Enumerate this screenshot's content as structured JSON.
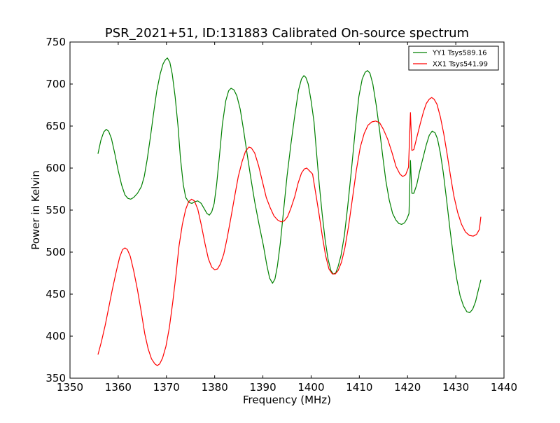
{
  "chart_data": {
    "type": "line",
    "title": "PSR_2021+51, ID:131883 Calibrated On-source spectrum",
    "xlabel": "Frequency (MHz)",
    "ylabel": "Power in Kelvin",
    "xlim": [
      1350,
      1440
    ],
    "ylim": [
      350,
      750
    ],
    "xticks": [
      "1350",
      "1360",
      "1370",
      "1380",
      "1390",
      "1400",
      "1410",
      "1420",
      "1430",
      "1440"
    ],
    "yticks": [
      "350",
      "400",
      "450",
      "500",
      "550",
      "600",
      "650",
      "700",
      "750"
    ],
    "grid": false,
    "legend_position": "top-right",
    "series": [
      {
        "name": "YY1 Tsys589.16",
        "color": "#008000",
        "points": [
          [
            1355.8,
            617
          ],
          [
            1356.4,
            633
          ],
          [
            1357.0,
            643
          ],
          [
            1357.5,
            646
          ],
          [
            1358.0,
            644
          ],
          [
            1358.6,
            635
          ],
          [
            1359.3,
            617
          ],
          [
            1360.0,
            597
          ],
          [
            1360.7,
            580
          ],
          [
            1361.4,
            568
          ],
          [
            1362.0,
            564
          ],
          [
            1362.6,
            563
          ],
          [
            1363.2,
            565
          ],
          [
            1364.0,
            570
          ],
          [
            1364.8,
            578
          ],
          [
            1365.4,
            590
          ],
          [
            1366.0,
            610
          ],
          [
            1366.7,
            638
          ],
          [
            1367.4,
            668
          ],
          [
            1368.0,
            692
          ],
          [
            1368.7,
            712
          ],
          [
            1369.3,
            724
          ],
          [
            1369.8,
            729
          ],
          [
            1370.2,
            731
          ],
          [
            1370.7,
            726
          ],
          [
            1371.2,
            712
          ],
          [
            1371.8,
            685
          ],
          [
            1372.4,
            650
          ],
          [
            1372.9,
            612
          ],
          [
            1373.5,
            580
          ],
          [
            1374.0,
            565
          ],
          [
            1374.7,
            559
          ],
          [
            1375.3,
            558
          ],
          [
            1375.9,
            560
          ],
          [
            1376.5,
            561
          ],
          [
            1377.2,
            558
          ],
          [
            1377.8,
            552
          ],
          [
            1378.4,
            546
          ],
          [
            1378.9,
            544
          ],
          [
            1379.4,
            548
          ],
          [
            1379.9,
            558
          ],
          [
            1380.4,
            580
          ],
          [
            1381.0,
            615
          ],
          [
            1381.6,
            652
          ],
          [
            1382.3,
            680
          ],
          [
            1382.9,
            692
          ],
          [
            1383.4,
            695
          ],
          [
            1384.0,
            693
          ],
          [
            1384.6,
            686
          ],
          [
            1385.3,
            670
          ],
          [
            1386.0,
            645
          ],
          [
            1386.7,
            618
          ],
          [
            1387.5,
            588
          ],
          [
            1388.3,
            560
          ],
          [
            1389.2,
            533
          ],
          [
            1390.1,
            508
          ],
          [
            1390.8,
            485
          ],
          [
            1391.4,
            469
          ],
          [
            1392.0,
            463
          ],
          [
            1392.5,
            468
          ],
          [
            1393.0,
            483
          ],
          [
            1393.6,
            510
          ],
          [
            1394.3,
            550
          ],
          [
            1395.0,
            590
          ],
          [
            1395.8,
            628
          ],
          [
            1396.6,
            662
          ],
          [
            1397.4,
            693
          ],
          [
            1398.0,
            706
          ],
          [
            1398.5,
            710
          ],
          [
            1398.9,
            708
          ],
          [
            1399.4,
            700
          ],
          [
            1400.0,
            680
          ],
          [
            1400.6,
            655
          ],
          [
            1401.1,
            620
          ],
          [
            1401.7,
            580
          ],
          [
            1402.3,
            545
          ],
          [
            1402.9,
            515
          ],
          [
            1403.5,
            492
          ],
          [
            1404.1,
            478
          ],
          [
            1404.6,
            474
          ],
          [
            1405.1,
            475
          ],
          [
            1405.6,
            483
          ],
          [
            1406.2,
            496
          ],
          [
            1406.9,
            520
          ],
          [
            1407.6,
            555
          ],
          [
            1408.4,
            600
          ],
          [
            1409.2,
            648
          ],
          [
            1409.9,
            685
          ],
          [
            1410.6,
            706
          ],
          [
            1411.2,
            714
          ],
          [
            1411.7,
            716
          ],
          [
            1412.2,
            713
          ],
          [
            1412.8,
            700
          ],
          [
            1413.5,
            675
          ],
          [
            1414.2,
            645
          ],
          [
            1414.9,
            612
          ],
          [
            1415.5,
            585
          ],
          [
            1416.2,
            562
          ],
          [
            1416.9,
            546
          ],
          [
            1417.6,
            538
          ],
          [
            1418.2,
            534
          ],
          [
            1418.8,
            533
          ],
          [
            1419.4,
            535
          ],
          [
            1419.9,
            540
          ],
          [
            1420.3,
            546
          ],
          [
            1420.6,
            609
          ],
          [
            1420.9,
            570
          ],
          [
            1421.3,
            570
          ],
          [
            1421.9,
            580
          ],
          [
            1422.5,
            596
          ],
          [
            1423.2,
            612
          ],
          [
            1423.9,
            628
          ],
          [
            1424.5,
            639
          ],
          [
            1425.1,
            644
          ],
          [
            1425.7,
            642
          ],
          [
            1426.2,
            635
          ],
          [
            1426.8,
            618
          ],
          [
            1427.4,
            595
          ],
          [
            1428.1,
            562
          ],
          [
            1428.8,
            527
          ],
          [
            1429.5,
            495
          ],
          [
            1430.2,
            468
          ],
          [
            1430.9,
            448
          ],
          [
            1431.6,
            436
          ],
          [
            1432.3,
            429
          ],
          [
            1432.9,
            428
          ],
          [
            1433.5,
            432
          ],
          [
            1434.1,
            441
          ],
          [
            1434.6,
            453
          ],
          [
            1435.2,
            467
          ]
        ]
      },
      {
        "name": "XX1 Tsys541.99",
        "color": "#ff0000",
        "points": [
          [
            1355.8,
            378
          ],
          [
            1356.5,
            393
          ],
          [
            1357.3,
            413
          ],
          [
            1358.0,
            433
          ],
          [
            1358.8,
            456
          ],
          [
            1359.6,
            477
          ],
          [
            1360.3,
            494
          ],
          [
            1360.9,
            503
          ],
          [
            1361.4,
            505
          ],
          [
            1361.9,
            503
          ],
          [
            1362.5,
            495
          ],
          [
            1363.2,
            478
          ],
          [
            1364.0,
            455
          ],
          [
            1364.8,
            428
          ],
          [
            1365.5,
            403
          ],
          [
            1366.2,
            385
          ],
          [
            1366.9,
            373
          ],
          [
            1367.6,
            367
          ],
          [
            1368.1,
            365
          ],
          [
            1368.6,
            367
          ],
          [
            1369.2,
            374
          ],
          [
            1369.9,
            388
          ],
          [
            1370.6,
            410
          ],
          [
            1371.3,
            440
          ],
          [
            1372.0,
            474
          ],
          [
            1372.6,
            507
          ],
          [
            1373.3,
            533
          ],
          [
            1374.0,
            551
          ],
          [
            1374.6,
            560
          ],
          [
            1375.2,
            563
          ],
          [
            1375.8,
            561
          ],
          [
            1376.5,
            551
          ],
          [
            1377.2,
            533
          ],
          [
            1378.0,
            510
          ],
          [
            1378.7,
            492
          ],
          [
            1379.4,
            482
          ],
          [
            1380.0,
            479
          ],
          [
            1380.6,
            480
          ],
          [
            1381.2,
            486
          ],
          [
            1381.9,
            498
          ],
          [
            1382.6,
            517
          ],
          [
            1383.4,
            542
          ],
          [
            1384.2,
            568
          ],
          [
            1384.9,
            590
          ],
          [
            1385.7,
            608
          ],
          [
            1386.4,
            620
          ],
          [
            1387.1,
            625
          ],
          [
            1387.6,
            624
          ],
          [
            1388.3,
            618
          ],
          [
            1389.1,
            603
          ],
          [
            1389.9,
            584
          ],
          [
            1390.7,
            565
          ],
          [
            1391.5,
            553
          ],
          [
            1392.3,
            543
          ],
          [
            1393.1,
            538
          ],
          [
            1393.8,
            536
          ],
          [
            1394.4,
            537
          ],
          [
            1395.1,
            542
          ],
          [
            1395.8,
            552
          ],
          [
            1396.6,
            566
          ],
          [
            1397.3,
            582
          ],
          [
            1398.0,
            594
          ],
          [
            1398.6,
            599
          ],
          [
            1399.1,
            600
          ],
          [
            1399.6,
            597
          ],
          [
            1400.3,
            593
          ],
          [
            1400.9,
            572
          ],
          [
            1401.6,
            547
          ],
          [
            1402.3,
            520
          ],
          [
            1403.0,
            496
          ],
          [
            1403.7,
            480
          ],
          [
            1404.4,
            474
          ],
          [
            1405.0,
            474
          ],
          [
            1405.6,
            478
          ],
          [
            1406.3,
            488
          ],
          [
            1407.0,
            505
          ],
          [
            1407.8,
            532
          ],
          [
            1408.6,
            565
          ],
          [
            1409.4,
            598
          ],
          [
            1410.2,
            625
          ],
          [
            1411.0,
            641
          ],
          [
            1411.8,
            651
          ],
          [
            1412.6,
            655
          ],
          [
            1413.4,
            656
          ],
          [
            1414.2,
            654
          ],
          [
            1415.0,
            646
          ],
          [
            1415.9,
            634
          ],
          [
            1416.8,
            618
          ],
          [
            1417.6,
            602
          ],
          [
            1418.4,
            593
          ],
          [
            1419.0,
            590
          ],
          [
            1419.6,
            592
          ],
          [
            1420.2,
            601
          ],
          [
            1420.6,
            666
          ],
          [
            1420.9,
            621
          ],
          [
            1421.3,
            622
          ],
          [
            1421.9,
            636
          ],
          [
            1422.6,
            652
          ],
          [
            1423.3,
            667
          ],
          [
            1423.9,
            677
          ],
          [
            1424.5,
            682
          ],
          [
            1425.0,
            684
          ],
          [
            1425.5,
            682
          ],
          [
            1426.1,
            676
          ],
          [
            1426.8,
            661
          ],
          [
            1427.5,
            641
          ],
          [
            1428.2,
            617
          ],
          [
            1428.9,
            591
          ],
          [
            1429.6,
            567
          ],
          [
            1430.4,
            547
          ],
          [
            1431.2,
            533
          ],
          [
            1432.0,
            524
          ],
          [
            1432.8,
            520
          ],
          [
            1433.6,
            519
          ],
          [
            1434.3,
            521
          ],
          [
            1434.9,
            527
          ],
          [
            1435.2,
            542
          ]
        ]
      }
    ]
  }
}
